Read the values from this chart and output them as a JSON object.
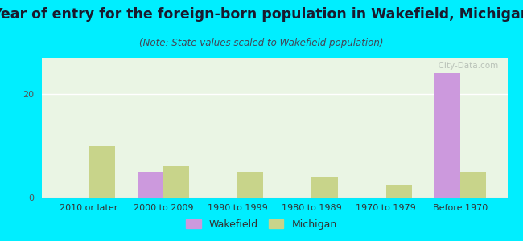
{
  "title": "Year of entry for the foreign-born population in Wakefield, Michigan",
  "subtitle": "(Note: State values scaled to Wakefield population)",
  "categories": [
    "2010 or later",
    "2000 to 2009",
    "1990 to 1999",
    "1980 to 1989",
    "1970 to 1979",
    "Before 1970"
  ],
  "wakefield_values": [
    0,
    5,
    0,
    0,
    0,
    24
  ],
  "michigan_values": [
    10,
    6,
    5,
    4,
    2.5,
    5
  ],
  "wakefield_color": "#cc99dd",
  "michigan_color": "#c8d48a",
  "background_outer": "#00eeff",
  "background_plot": "#eaf5e4",
  "ylim": [
    0,
    27
  ],
  "yticks": [
    0,
    20
  ],
  "bar_width": 0.35,
  "title_fontsize": 12.5,
  "subtitle_fontsize": 8.5,
  "tick_fontsize": 8,
  "legend_fontsize": 9,
  "watermark": "  City-Data.com"
}
